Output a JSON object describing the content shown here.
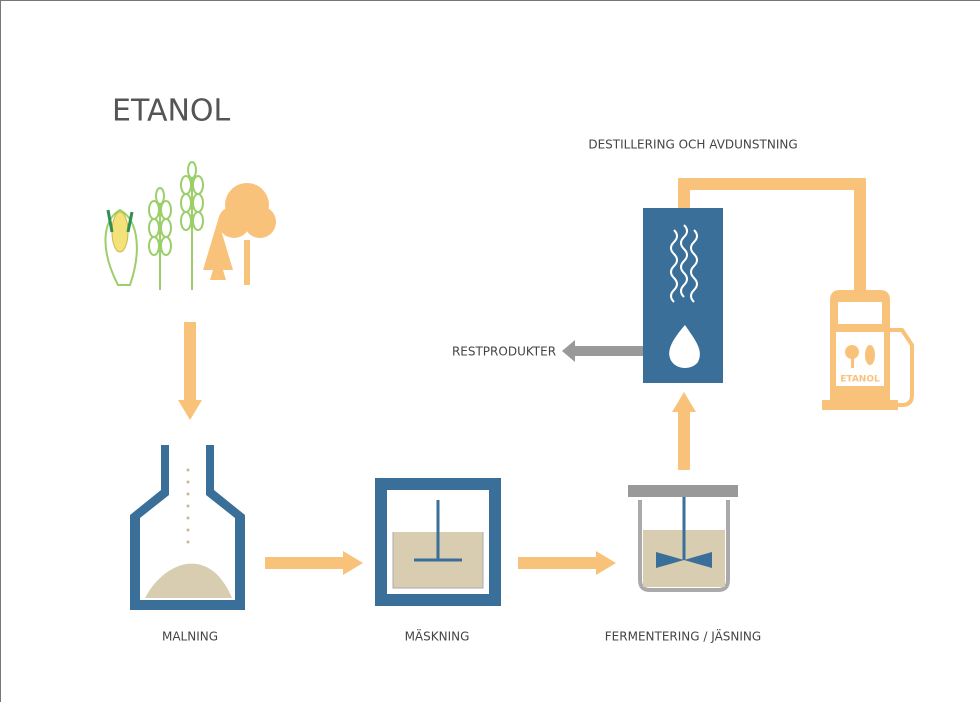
{
  "title": "ETANOL",
  "steps": [
    "MALNING",
    "MÄSKNING",
    "FERMENTERING / JÄSNING"
  ],
  "distillation": "DESTILLERING OCH AVDUNSTNING",
  "residue": "RESTPRODUKTER",
  "pump": {
    "label": "ETANOL"
  }
}
